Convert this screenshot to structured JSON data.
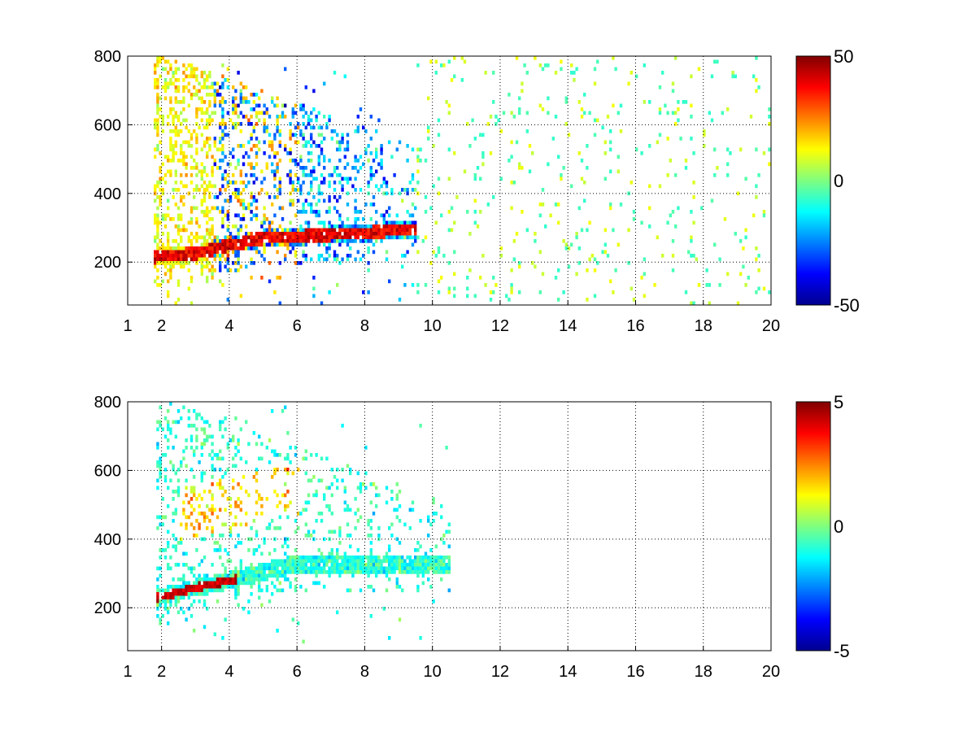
{
  "chart_data": [
    {
      "type": "heatmap",
      "title": "",
      "xlabel": "",
      "ylabel": "",
      "xlim": [
        1,
        20
      ],
      "ylim": [
        75,
        800
      ],
      "xticks": [
        1,
        2,
        4,
        6,
        8,
        10,
        12,
        14,
        16,
        18,
        20
      ],
      "yticks": [
        200,
        400,
        600,
        800
      ],
      "grid": true,
      "colormap": "jet",
      "clim": [
        -50,
        50
      ],
      "colorbar_ticks": [
        -50,
        0,
        50
      ],
      "description_values": {
        "ridge": [
          [
            1.7,
            220
          ],
          [
            3,
            230
          ],
          [
            4,
            255
          ],
          [
            5,
            275
          ],
          [
            6,
            280
          ],
          [
            7,
            285
          ],
          [
            8,
            290
          ],
          [
            9,
            300
          ]
        ],
        "dense_region_x": [
          1.7,
          9.5
        ],
        "sparse_region_x": [
          9.5,
          20
        ]
      }
    },
    {
      "type": "heatmap",
      "title": "",
      "xlabel": "",
      "ylabel": "",
      "xlim": [
        1,
        20
      ],
      "ylim": [
        75,
        800
      ],
      "xticks": [
        1,
        2,
        4,
        6,
        8,
        10,
        12,
        14,
        16,
        18,
        20
      ],
      "yticks": [
        200,
        400,
        600,
        800
      ],
      "grid": true,
      "colormap": "jet",
      "clim": [
        -5,
        5
      ],
      "colorbar_ticks": [
        -5,
        0,
        5
      ],
      "description_values": {
        "ridge": [
          [
            1.8,
            235
          ],
          [
            2.5,
            250
          ],
          [
            3,
            265
          ],
          [
            4,
            285
          ],
          [
            5,
            310
          ],
          [
            5.8,
            330
          ]
        ],
        "dense_region_x": [
          1.8,
          10.5
        ]
      }
    }
  ],
  "colors": {
    "axis": "#000000",
    "grid": "#000000",
    "background": "#ffffff"
  }
}
